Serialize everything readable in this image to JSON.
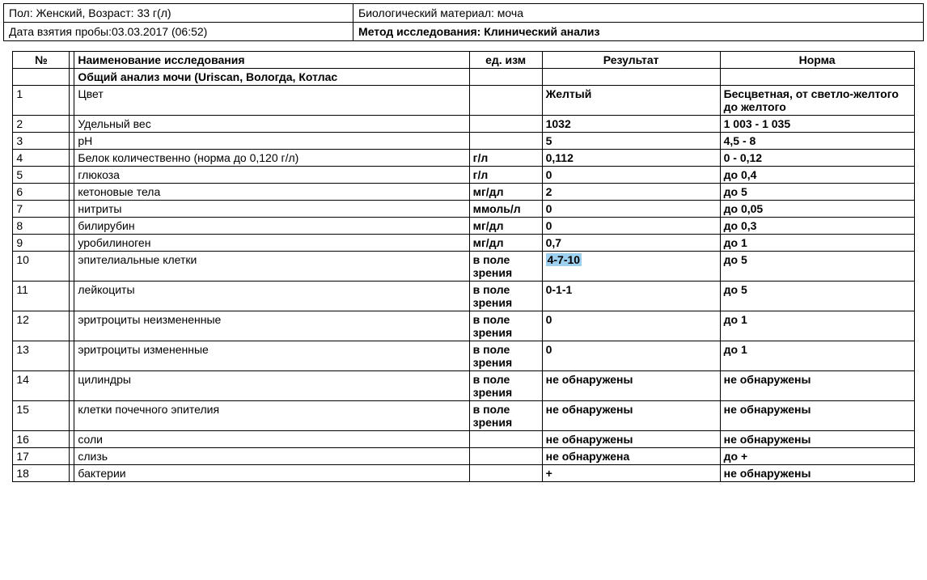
{
  "header": {
    "gender_age": "Пол: Женский, Возраст: 33 г(л)",
    "sample_date": "Дата взятия пробы:03.03.2017 (06:52)",
    "material": "Биологический материал: моча",
    "method": "Метод исследования: Клинический анализ"
  },
  "columns": {
    "num": "№",
    "name": "Наименование исследования",
    "unit": "ед. изм",
    "result": "Результат",
    "norm": "Норма"
  },
  "section_title": "Общий анализ мочи (Uriscan, Вологда, Котлас",
  "rows": [
    {
      "num": "1",
      "name": "Цвет",
      "unit": "",
      "result": "Желтый",
      "norm": "Бесцветная, от светло-желтого до желтого",
      "highlight": false
    },
    {
      "num": "2",
      "name": "Удельный вес",
      "unit": "",
      "result": "1032",
      "norm": "1 003 - 1 035",
      "highlight": false
    },
    {
      "num": "3",
      "name": "рН",
      "unit": "",
      "result": "5",
      "norm": "4,5 - 8",
      "highlight": false
    },
    {
      "num": "4",
      "name": "Белок количественно (норма до 0,120 г/л)",
      "unit": "г/л",
      "result": "0,112",
      "norm": "0 - 0,12",
      "highlight": false
    },
    {
      "num": "5",
      "name": "глюкоза",
      "unit": "г/л",
      "result": "0",
      "norm": "до 0,4",
      "highlight": false
    },
    {
      "num": "6",
      "name": "кетоновые тела",
      "unit": "мг/дл",
      "result": "2",
      "norm": "до 5",
      "highlight": false
    },
    {
      "num": "7",
      "name": "нитриты",
      "unit": "ммоль/л",
      "result": "0",
      "norm": "до 0,05",
      "highlight": false
    },
    {
      "num": "8",
      "name": "билирубин",
      "unit": "мг/дл",
      "result": "0",
      "norm": "до 0,3",
      "highlight": false
    },
    {
      "num": "9",
      "name": "уробилиноген",
      "unit": "мг/дл",
      "result": "0,7",
      "norm": "до 1",
      "highlight": false
    },
    {
      "num": "10",
      "name": "эпителиальные клетки",
      "unit": "в поле зрения",
      "result": "4-7-10",
      "norm": "до 5",
      "highlight": true
    },
    {
      "num": "11",
      "name": "лейкоциты",
      "unit": "в поле зрения",
      "result": "0-1-1",
      "norm": "до 5",
      "highlight": false
    },
    {
      "num": "12",
      "name": "эритроциты неизмененные",
      "unit": "в поле зрения",
      "result": "0",
      "norm": "до 1",
      "highlight": false
    },
    {
      "num": "13",
      "name": "эритроциты измененные",
      "unit": "в поле зрения",
      "result": "0",
      "norm": "до 1",
      "highlight": false
    },
    {
      "num": "14",
      "name": "цилиндры",
      "unit": "в поле зрения",
      "result": "не обнаружены",
      "norm": "не обнаружены",
      "highlight": false
    },
    {
      "num": "15",
      "name": "клетки почечного эпителия",
      "unit": "в поле зрения",
      "result": "не обнаружены",
      "norm": "не обнаружены",
      "highlight": false
    },
    {
      "num": "16",
      "name": "соли",
      "unit": "",
      "result": "не обнаружены",
      "norm": "не обнаружены",
      "highlight": false
    },
    {
      "num": "17",
      "name": "слизь",
      "unit": "",
      "result": "не обнаружена",
      "norm": "до +",
      "highlight": false
    },
    {
      "num": "18",
      "name": "бактерии",
      "unit": "",
      "result": "+",
      "norm": "не обнаружены",
      "highlight": false
    }
  ]
}
